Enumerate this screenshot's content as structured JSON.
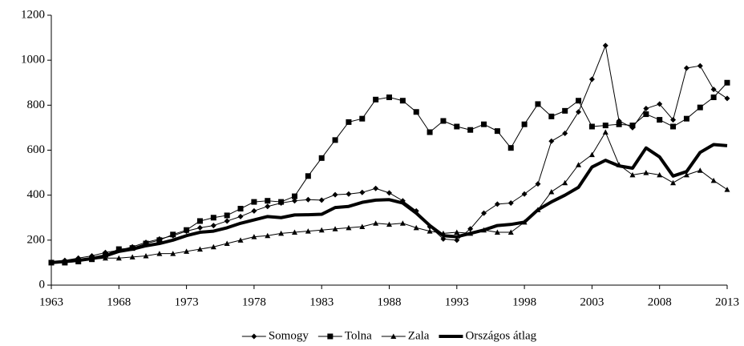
{
  "chart_data": {
    "type": "line",
    "x": [
      1963,
      1964,
      1965,
      1966,
      1967,
      1968,
      1969,
      1970,
      1971,
      1972,
      1973,
      1974,
      1975,
      1976,
      1977,
      1978,
      1979,
      1980,
      1981,
      1982,
      1983,
      1984,
      1985,
      1986,
      1987,
      1988,
      1989,
      1990,
      1991,
      1992,
      1993,
      1994,
      1995,
      1996,
      1997,
      1998,
      1999,
      2000,
      2001,
      2002,
      2003,
      2004,
      2005,
      2006,
      2007,
      2008,
      2009,
      2010,
      2011,
      2012,
      2013
    ],
    "series": [
      {
        "name": "Somogy",
        "color": "#000000",
        "marker": "diamond",
        "line_width": 1,
        "values": [
          100,
          110,
          120,
          130,
          145,
          155,
          170,
          190,
          205,
          220,
          240,
          255,
          265,
          285,
          305,
          330,
          350,
          365,
          375,
          380,
          378,
          402,
          405,
          412,
          430,
          410,
          375,
          330,
          260,
          205,
          200,
          250,
          320,
          360,
          365,
          405,
          450,
          640,
          675,
          770,
          915,
          1065,
          730,
          700,
          785,
          805,
          735,
          965,
          975,
          870,
          830
        ]
      },
      {
        "name": "Tolna",
        "color": "#000000",
        "marker": "square",
        "line_width": 1,
        "values": [
          100,
          100,
          105,
          115,
          135,
          160,
          165,
          185,
          200,
          225,
          245,
          285,
          300,
          310,
          340,
          370,
          375,
          370,
          395,
          485,
          565,
          645,
          725,
          740,
          825,
          835,
          820,
          770,
          680,
          730,
          705,
          690,
          715,
          685,
          610,
          715,
          805,
          750,
          775,
          820,
          705,
          710,
          715,
          710,
          760,
          735,
          705,
          740,
          790,
          835,
          900
        ]
      },
      {
        "name": "Zala",
        "color": "#000000",
        "marker": "triangle",
        "line_width": 1,
        "values": [
          100,
          105,
          110,
          115,
          120,
          120,
          125,
          130,
          140,
          140,
          150,
          160,
          170,
          185,
          200,
          215,
          220,
          230,
          235,
          240,
          245,
          250,
          255,
          260,
          275,
          270,
          275,
          255,
          240,
          230,
          235,
          230,
          245,
          235,
          235,
          280,
          335,
          415,
          455,
          535,
          580,
          680,
          535,
          490,
          500,
          490,
          455,
          490,
          510,
          465,
          425
        ]
      },
      {
        "name": "Országos átlag",
        "color": "#000000",
        "marker": "none",
        "line_width": 4,
        "values": [
          100,
          105,
          110,
          118,
          130,
          150,
          160,
          175,
          185,
          200,
          220,
          235,
          240,
          255,
          275,
          290,
          305,
          300,
          312,
          313,
          315,
          345,
          350,
          368,
          378,
          380,
          365,
          320,
          265,
          220,
          215,
          230,
          245,
          265,
          270,
          280,
          335,
          370,
          400,
          435,
          525,
          555,
          530,
          520,
          610,
          570,
          485,
          505,
          590,
          625,
          620
        ]
      }
    ],
    "xlim": [
      1963,
      2013
    ],
    "xticks": [
      1963,
      1968,
      1973,
      1978,
      1983,
      1988,
      1993,
      1998,
      2003,
      2008,
      2013
    ],
    "ylim": [
      0,
      1200
    ],
    "yticks": [
      0,
      200,
      400,
      600,
      800,
      1000,
      1200
    ],
    "grid": false,
    "legend": "bottom"
  }
}
